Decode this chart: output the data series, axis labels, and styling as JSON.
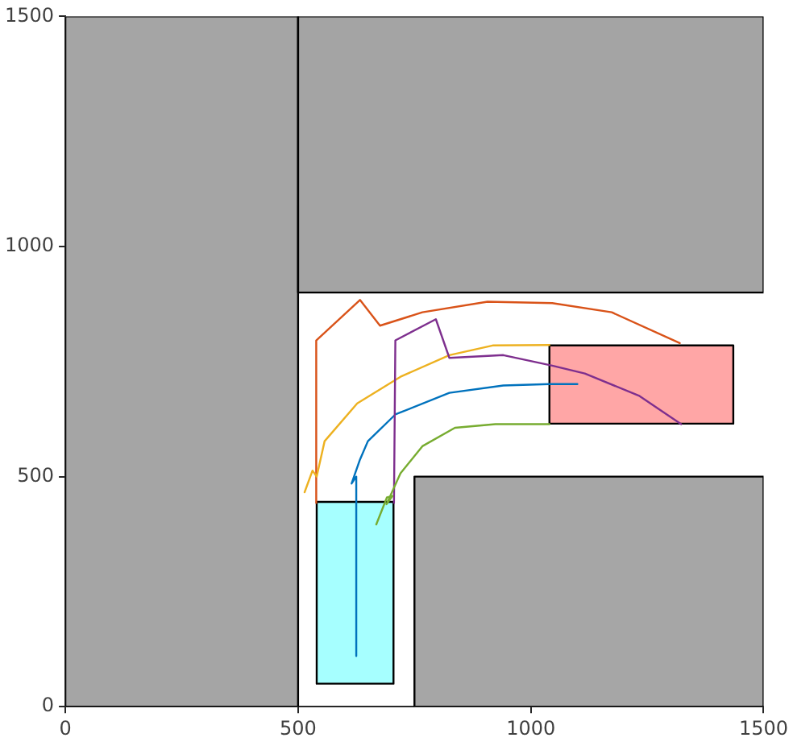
{
  "chart_data": {
    "type": "line",
    "xlim": [
      0,
      1500
    ],
    "ylim": [
      0,
      1500
    ],
    "xticks": [
      0,
      500,
      1000,
      1500
    ],
    "yticks": [
      0,
      500,
      1000,
      1500
    ],
    "grid": false,
    "legend": false,
    "marker": "none",
    "series": [
      {
        "type": "area",
        "color": "#a5a5a5",
        "x": [
          0,
          500,
          500,
          0,
          0
        ],
        "values": [
          0,
          0,
          1500,
          1500,
          0
        ]
      },
      {
        "type": "area",
        "color": "#a4a4a4",
        "x": [
          500,
          1500,
          1500,
          500,
          500
        ],
        "values": [
          900,
          900,
          1500,
          1500,
          900
        ]
      },
      {
        "type": "area",
        "color": "#a6a6a6",
        "x": [
          750,
          1500,
          1500,
          750,
          750
        ],
        "values": [
          0,
          0,
          500,
          500,
          0
        ]
      },
      {
        "type": "area",
        "color": "#a6ffff",
        "x": [
          540,
          705,
          705,
          540,
          540
        ],
        "values": [
          50,
          50,
          445,
          445,
          50
        ]
      },
      {
        "type": "area",
        "color": "#ffa6a6",
        "x": [
          1040,
          1435,
          1435,
          1040,
          1040
        ],
        "values": [
          615,
          615,
          785,
          785,
          615
        ]
      },
      {
        "color": "#0072bd",
        "x": [
          625,
          625,
          615,
          633,
          650,
          709,
          825,
          941,
          1040,
          1100
        ],
        "values": [
          110,
          500,
          485,
          537,
          577,
          635,
          682,
          698,
          701,
          701
        ]
      },
      {
        "color": "#d95319",
        "x": [
          539,
          539,
          633,
          676,
          767,
          907,
          1046,
          1174,
          1320
        ],
        "values": [
          443,
          796,
          884,
          828,
          857,
          880,
          877,
          857,
          790
        ]
      },
      {
        "color": "#edb120",
        "x": [
          514,
          531,
          540,
          557,
          627,
          720,
          825,
          918,
          1040
        ],
        "values": [
          466,
          513,
          500,
          577,
          659,
          717,
          764,
          785,
          786
        ]
      },
      {
        "color": "#7e2f8e",
        "x": [
          706,
          709,
          796,
          825,
          941,
          1046,
          1116,
          1232,
          1323
        ],
        "values": [
          443,
          796,
          842,
          758,
          764,
          741,
          724,
          676,
          614
        ]
      },
      {
        "color": "#77ac30",
        "x": [
          668,
          691,
          703,
          690,
          720,
          767,
          837,
          924,
          1040
        ],
        "values": [
          396,
          455,
          458,
          440,
          507,
          566,
          606,
          614,
          614
        ]
      }
    ]
  }
}
